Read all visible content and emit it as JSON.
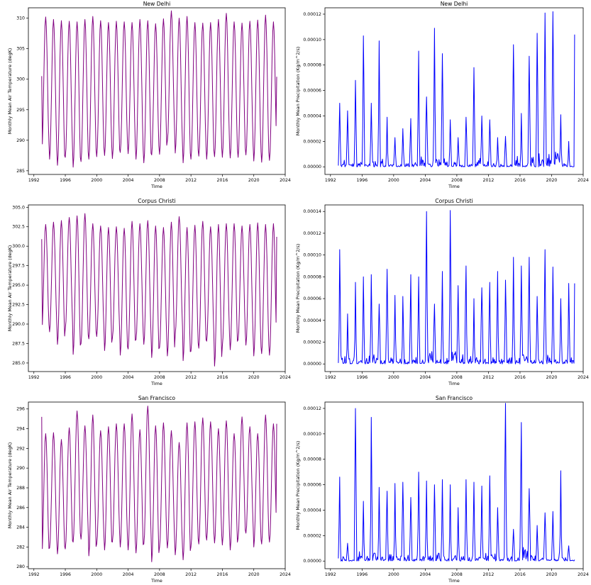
{
  "figure": {
    "background": "#ffffff"
  },
  "chart_data": [
    {
      "type": "line",
      "title": "New Delhi",
      "xlabel": "Time",
      "ylabel": "Monthly Mean Air Temperature (degK)",
      "xlim": [
        1991.3,
        2024.0
      ],
      "ylim": [
        284.4,
        311.7
      ],
      "xticks": [
        1992,
        1996,
        2000,
        2004,
        2008,
        2012,
        2016,
        2020,
        2024
      ],
      "xtick_labels": [
        "1992",
        "1996",
        "2000",
        "2004",
        "2008",
        "2012",
        "2016",
        "2020",
        "2024"
      ],
      "yticks": [
        285,
        290,
        295,
        300,
        305,
        310
      ],
      "ytick_labels": [
        "285",
        "290",
        "295",
        "300",
        "305",
        "310"
      ],
      "start": 1993.0,
      "step": 0.08333,
      "mode": "temp",
      "series": [
        {
          "color": "#800080",
          "x": [
            1993.0,
            2022.92
          ],
          "values_spec": {
            "max": [
              310.2,
              309.8,
              309.6,
              309.5,
              309.4,
              309.8,
              310.3,
              309.6,
              309.3,
              309.5,
              309.4,
              309.3,
              309.8,
              309.6,
              309.1,
              309.9,
              311.2,
              310.0,
              310.3,
              309.3,
              309.2,
              309.3,
              309.8,
              310.8,
              309.4,
              309.2,
              309.5,
              309.7,
              310.5,
              309.4
            ],
            "min": [
              287.9,
              286.9,
              285.9,
              287.2,
              285.6,
              286.5,
              286.9,
              287.3,
              287.5,
              287.0,
              288.0,
              287.8,
              286.9,
              286.3,
              287.6,
              287.7,
              289.9,
              287.9,
              286.3,
              286.9,
              287.4,
              286.9,
              287.3,
              287.2,
              287.1,
              287.2,
              287.6,
              286.6,
              286.4,
              286.7
            ],
            "start_value": 300.5,
            "end_value": 300.4
          }
        }
      ]
    },
    {
      "type": "line",
      "title": "New Delhi",
      "xlabel": "Time",
      "ylabel": "Monthly Mean Precipitation (Kg/m^2/s)",
      "xlim": [
        1991.3,
        2024.0
      ],
      "ylim": [
        -6e-06,
        0.000125
      ],
      "xticks": [
        1992,
        1996,
        2000,
        2004,
        2008,
        2012,
        2016,
        2020,
        2024
      ],
      "xtick_labels": [
        "1992",
        "1996",
        "2000",
        "2004",
        "2008",
        "2012",
        "2016",
        "2020",
        "2024"
      ],
      "yticks": [
        0,
        2e-05,
        4e-05,
        6e-05,
        8e-05,
        0.0001,
        0.00012
      ],
      "ytick_labels": [
        "0.00000",
        "0.00002",
        "0.00004",
        "0.00006",
        "0.00008",
        "0.00010",
        "0.00012"
      ],
      "start": 1993.0,
      "step": 0.08333,
      "mode": "precip",
      "series": [
        {
          "color": "#0000ff",
          "x": [
            1993.0,
            2022.92
          ],
          "values_spec": {
            "peaks": [
              5e-05,
              4.4e-05,
              6.8e-05,
              0.000103,
              5e-05,
              9.9e-05,
              3.9e-05,
              2.3e-05,
              3e-05,
              3.8e-05,
              9.1e-05,
              5.5e-05,
              0.000109,
              8.9e-05,
              3.7e-05,
              2.3e-05,
              3.9e-05,
              7.8e-05,
              4e-05,
              3.7e-05,
              2.3e-05,
              2.4e-05,
              9.6e-05,
              4.2e-05,
              8.7e-05,
              0.000105,
              0.000121,
              0.000122,
              4.1e-05,
              2e-05
            ],
            "end_value": 0.000104
          }
        }
      ]
    },
    {
      "type": "line",
      "title": "Corpus Christi",
      "xlabel": "Time",
      "ylabel": "Monthly Mean Air Temperature (degK)",
      "xlim": [
        1991.3,
        2024.0
      ],
      "ylim": [
        283.9,
        305.3
      ],
      "xticks": [
        1992,
        1996,
        2000,
        2004,
        2008,
        2012,
        2016,
        2020,
        2024
      ],
      "xtick_labels": [
        "1992",
        "1996",
        "2000",
        "2004",
        "2008",
        "2012",
        "2016",
        "2020",
        "2024"
      ],
      "yticks": [
        285,
        287.5,
        290,
        292.5,
        295,
        297.5,
        300,
        302.5,
        305
      ],
      "ytick_labels": [
        "285.0",
        "287.5",
        "290.0",
        "292.5",
        "295.0",
        "297.5",
        "300.0",
        "302.5",
        "305.0"
      ],
      "start": 1993.0,
      "step": 0.08333,
      "mode": "temp",
      "series": [
        {
          "color": "#800080",
          "x": [
            1993.0,
            2022.92
          ],
          "values_spec": {
            "max": [
              302.8,
              303.1,
              303.3,
              303.7,
              303.9,
              304.2,
              302.9,
              302.6,
              302.4,
              302.5,
              302.3,
              303.2,
              302.9,
              303.3,
              302.6,
              302.4,
              303.1,
              303.8,
              302.4,
              302.7,
              303.2,
              302.5,
              302.8,
              302.9,
              302.9,
              302.6,
              302.8,
              303.0,
              302.8,
              302.9
            ],
            "min": [
              289.0,
              289.0,
              287.4,
              289.4,
              286.1,
              287.5,
              288.1,
              288.4,
              286.6,
              288.2,
              286.0,
              286.8,
              288.0,
              287.4,
              285.7,
              287.0,
              285.9,
              288.7,
              285.3,
              286.5,
              286.9,
              287.8,
              284.6,
              287.2,
              286.7,
              288.0,
              287.3,
              285.9,
              286.2,
              286.0
            ],
            "start_value": 300.9,
            "end_value": 301.2
          }
        }
      ]
    },
    {
      "type": "line",
      "title": "Corpus Christi",
      "xlabel": "Time",
      "ylabel": "Monthly Mean Precipitation (Kg/m^2/s)",
      "xlim": [
        1991.3,
        2024.0
      ],
      "ylim": [
        -7e-06,
        0.000146
      ],
      "xticks": [
        1992,
        1996,
        2000,
        2004,
        2008,
        2012,
        2016,
        2020,
        2024
      ],
      "xtick_labels": [
        "1992",
        "1996",
        "2000",
        "2004",
        "2008",
        "2012",
        "2016",
        "2020",
        "2024"
      ],
      "yticks": [
        0,
        2e-05,
        4e-05,
        6e-05,
        8e-05,
        0.0001,
        0.00012,
        0.00014
      ],
      "ytick_labels": [
        "0.00000",
        "0.00002",
        "0.00004",
        "0.00006",
        "0.00008",
        "0.00010",
        "0.00012",
        "0.00014"
      ],
      "start": 1993.0,
      "step": 0.08333,
      "mode": "precip",
      "series": [
        {
          "color": "#0000ff",
          "x": [
            1993.0,
            2022.92
          ],
          "values_spec": {
            "peaks": [
              0.000105,
              4.6e-05,
              7.5e-05,
              8e-05,
              8.2e-05,
              5.5e-05,
              8.7e-05,
              6.3e-05,
              6.2e-05,
              8.2e-05,
              8e-05,
              0.00014,
              5.5e-05,
              8.5e-05,
              0.000141,
              7.2e-05,
              9e-05,
              6e-05,
              7e-05,
              7.5e-05,
              8.5e-05,
              7.7e-05,
              9.8e-05,
              9e-05,
              9.8e-05,
              6.2e-05,
              0.000105,
              8.9e-05,
              6e-05,
              7.4e-05
            ],
            "end_value": 7.4e-05
          }
        }
      ]
    },
    {
      "type": "line",
      "title": "San Francisco",
      "xlabel": "Time",
      "ylabel": "Monthly Mean Air Temperature (degK)",
      "xlim": [
        1991.3,
        2024.0
      ],
      "ylim": [
        279.8,
        296.7
      ],
      "xticks": [
        1992,
        1996,
        2000,
        2004,
        2008,
        2012,
        2016,
        2020,
        2024
      ],
      "xtick_labels": [
        "1992",
        "1996",
        "2000",
        "2004",
        "2008",
        "2012",
        "2016",
        "2020",
        "2024"
      ],
      "yticks": [
        280,
        282,
        284,
        286,
        288,
        290,
        292,
        294,
        296
      ],
      "ytick_labels": [
        "280",
        "282",
        "284",
        "286",
        "288",
        "290",
        "292",
        "294",
        "296"
      ],
      "start": 1993.0,
      "step": 0.08333,
      "mode": "temp",
      "series": [
        {
          "color": "#800080",
          "x": [
            1993.0,
            2022.92
          ],
          "values_spec": {
            "max": [
              293.5,
              293.6,
              292.9,
              294.1,
              295.8,
              294.3,
              295.4,
              293.8,
              294.2,
              294.5,
              294.5,
              295.5,
              293.9,
              296.3,
              294.3,
              294.6,
              293.8,
              292.6,
              294.6,
              294.7,
              295.1,
              294.7,
              294.0,
              294.8,
              293.5,
              295.2,
              294.2,
              293.5,
              295.4,
              294.5
            ],
            "min": [
              281.0,
              281.9,
              281.3,
              281.8,
              282.5,
              282.8,
              281.1,
              282.3,
              281.7,
              282.5,
              282.0,
              281.7,
              281.4,
              282.3,
              280.5,
              282.0,
              281.9,
              281.2,
              280.7,
              282.0,
              282.3,
              282.7,
              282.4,
              282.2,
              281.7,
              282.9,
              283.4,
              282.0,
              282.3,
              282.5
            ],
            "start_value": 295.2,
            "end_value": 294.5
          }
        }
      ]
    },
    {
      "type": "line",
      "title": "San Francisco",
      "xlabel": "Time",
      "ylabel": "Monthly Mean Precipitation (Kg/m^2/s)",
      "xlim": [
        1991.3,
        2024.0
      ],
      "ylim": [
        -6e-06,
        0.000125
      ],
      "xticks": [
        1992,
        1996,
        2000,
        2004,
        2008,
        2012,
        2016,
        2020,
        2024
      ],
      "xtick_labels": [
        "1992",
        "1996",
        "2000",
        "2004",
        "2008",
        "2012",
        "2016",
        "2020",
        "2024"
      ],
      "yticks": [
        0,
        2e-05,
        4e-05,
        6e-05,
        8e-05,
        0.0001,
        0.00012
      ],
      "ytick_labels": [
        "0.00000",
        "0.00002",
        "0.00004",
        "0.00006",
        "0.00008",
        "0.00010",
        "0.00012"
      ],
      "start": 1993.0,
      "step": 0.08333,
      "mode": "precip",
      "series": [
        {
          "color": "#0000ff",
          "x": [
            1993.0,
            2022.92
          ],
          "values_spec": {
            "peaks": [
              6.6e-05,
              1.4e-05,
              0.00012,
              4.7e-05,
              0.000113,
              5.8e-05,
              5.5e-05,
              6.1e-05,
              6.2e-05,
              5e-05,
              7e-05,
              6.3e-05,
              6e-05,
              6.4e-05,
              6e-05,
              4.2e-05,
              6.4e-05,
              6.2e-05,
              5.9e-05,
              6.7e-05,
              4.2e-05,
              0.000124,
              2.5e-05,
              0.000109,
              5.7e-05,
              2.8e-05,
              3.8e-05,
              3.9e-05,
              7.1e-05,
              1.2e-05
            ],
            "end_value": 1e-06
          }
        }
      ]
    }
  ]
}
